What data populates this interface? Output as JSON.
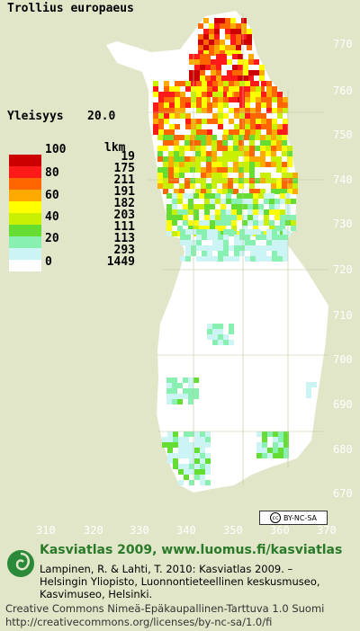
{
  "map": {
    "species": "Trollius europaeus",
    "frequency_label": "Yleisyys",
    "frequency_value": "20.0",
    "y_ticks": [
      "770",
      "760",
      "750",
      "740",
      "730",
      "720",
      "710",
      "700",
      "690",
      "680",
      "670"
    ],
    "x_ticks": [
      "310",
      "320",
      "330",
      "340",
      "350",
      "360",
      "370"
    ]
  },
  "legend": {
    "count_header": "lkm",
    "classes": [
      {
        "color": "#cc0000",
        "value": "100",
        "count": "19"
      },
      {
        "color": "#ff1a1a",
        "value": "80",
        "count": "175"
      },
      {
        "color": "#ff6600",
        "value": "",
        "count": "211"
      },
      {
        "color": "#ffaa00",
        "value": "60",
        "count": "191"
      },
      {
        "color": "#ffff00",
        "value": "",
        "count": "182"
      },
      {
        "color": "#c8f000",
        "value": "40",
        "count": "203"
      },
      {
        "color": "#66dd33",
        "value": "",
        "count": "111"
      },
      {
        "color": "#88f0b0",
        "value": "20",
        "count": "113"
      },
      {
        "color": "#ccf4f4",
        "value": "",
        "count": "293"
      },
      {
        "color": "#ffffff",
        "value": "0",
        "count": "1449"
      }
    ]
  },
  "license_badge": "BY-NC-SA",
  "footer": {
    "heading": "Kasviatlas 2009, www.luomus.fi/kasviatlas",
    "citation_lines": [
      "Lampinen, R. & Lahti, T. 2010: Kasviatlas 2009. –",
      "Helsingin Yliopisto, Luonnontieteellinen keskusmuseo,",
      "Kasvimuseo, Helsinki."
    ],
    "license_lines": [
      "Creative Commons Nimeä-Epäkaupallinen-Tarttuva 1.0 Suomi",
      "http://creativecommons.org/licenses/by-nc-sa/1.0/fi"
    ]
  }
}
